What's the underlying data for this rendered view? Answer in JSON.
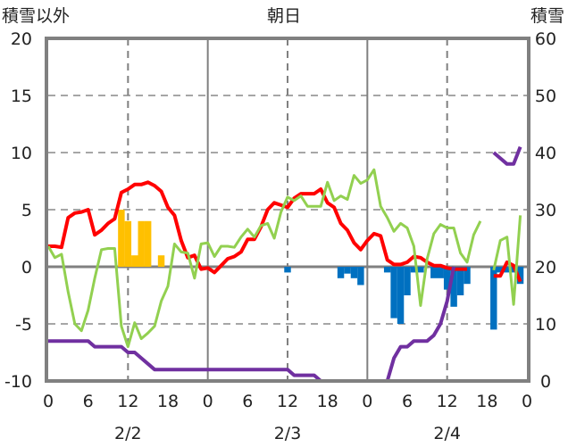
{
  "chart_data": {
    "type": "line",
    "title": "朝日",
    "ylabel_left": "積雪以外",
    "ylabel_right": "積雪",
    "ylim_left": [
      -10,
      20
    ],
    "ylim_right": [
      0,
      60
    ],
    "yticks_left": [
      "20",
      "15",
      "10",
      "5",
      "0",
      "-5",
      "-10"
    ],
    "yticks_right": [
      "60",
      "50",
      "40",
      "30",
      "20",
      "10",
      "0"
    ],
    "xlim_hours": [
      0,
      72
    ],
    "xticks": [
      "0",
      "6",
      "12",
      "18",
      "0",
      "6",
      "12",
      "18",
      "0",
      "6",
      "12",
      "18",
      "0"
    ],
    "date_labels": [
      "2/2",
      "2/3",
      "2/4"
    ],
    "grid": true,
    "colors": {
      "red": "#ff0000",
      "green": "#92d050",
      "purple": "#7030a0",
      "orange": "#ffc000",
      "blue": "#0070c0",
      "axis": "#808080"
    },
    "series": [
      {
        "name": "red-line",
        "axis": "left",
        "color": "#ff0000",
        "values": [
          1.8,
          1.8,
          1.7,
          4.3,
          4.7,
          4.8,
          5.0,
          2.8,
          3.2,
          3.8,
          4.2,
          6.5,
          6.8,
          7.2,
          7.2,
          7.4,
          7.1,
          6.6,
          5.2,
          4.5,
          2.3,
          0.8,
          1.0,
          -0.2,
          -0.1,
          -0.5,
          0.1,
          0.7,
          0.9,
          1.3,
          2.4,
          2.4,
          3.5,
          5.0,
          5.6,
          5.4,
          5.2,
          6.0,
          6.4,
          6.4,
          6.4,
          6.8,
          5.6,
          5.2,
          3.8,
          3.2,
          2.1,
          1.5,
          2.3,
          2.9,
          2.7,
          0.6,
          0.2,
          0.2,
          0.4,
          0.9,
          0.8,
          0.4,
          0.1,
          0.1,
          -0.1,
          -0.2,
          -0.2,
          -0.2,
          null,
          null,
          null,
          -0.8,
          -0.8,
          0.4,
          0.1,
          -1.3
        ]
      },
      {
        "name": "green-line",
        "axis": "left",
        "color": "#92d050",
        "values": [
          1.8,
          0.8,
          1.1,
          -2.2,
          -5.0,
          -5.6,
          -3.8,
          -1.0,
          1.5,
          1.6,
          1.6,
          -5.2,
          -7.0,
          -4.9,
          -6.3,
          -5.8,
          -5.2,
          -3.0,
          -1.7,
          2.0,
          1.3,
          1.2,
          -1.0,
          2.0,
          2.1,
          0.9,
          1.8,
          1.8,
          1.7,
          2.6,
          3.3,
          2.6,
          3.6,
          3.8,
          2.5,
          4.8,
          6.1,
          5.8,
          6.2,
          5.3,
          5.3,
          5.3,
          7.4,
          5.8,
          6.2,
          5.9,
          8.0,
          7.3,
          7.6,
          8.5,
          5.3,
          4.3,
          3.1,
          3.8,
          3.4,
          1.8,
          -3.4,
          0.7,
          2.9,
          3.7,
          3.4,
          3.4,
          1.2,
          0.4,
          2.8,
          4.0,
          null,
          -0.3,
          2.3,
          2.6,
          -3.3,
          4.5
        ]
      },
      {
        "name": "snow-depth",
        "axis": "right",
        "color": "#7030a0",
        "values": [
          7,
          7,
          7,
          7,
          7,
          7,
          7,
          6,
          6,
          6,
          6,
          6,
          5,
          5,
          4,
          3,
          2,
          2,
          2,
          2,
          2,
          2,
          2,
          2,
          2,
          2,
          2,
          2,
          2,
          2,
          2,
          2,
          2,
          2,
          2,
          2,
          2,
          1,
          1,
          1,
          1,
          0,
          0,
          0,
          0,
          0,
          0,
          0,
          0,
          0,
          0,
          0,
          4,
          6,
          6,
          7,
          7,
          7,
          8,
          10,
          14,
          20,
          null,
          null,
          null,
          null,
          null,
          40,
          39,
          38,
          38,
          41
        ]
      }
    ],
    "bars": [
      {
        "name": "positive-bars",
        "axis": "left",
        "color": "#ffc000",
        "values": {
          "11": 5,
          "12": 4,
          "13": 1,
          "14": 4,
          "15": 4,
          "17": 1
        }
      },
      {
        "name": "negative-bars",
        "axis": "left",
        "color": "#0070c0",
        "values": {
          "36": -0.5,
          "44": -1,
          "45": -0.6,
          "46": -1,
          "47": -1.6,
          "51": -0.5,
          "52": -4.5,
          "53": -5,
          "54": -2.5,
          "55": -0.5,
          "56": -0.5,
          "58": -1,
          "59": -1,
          "60": -2,
          "61": -3.5,
          "62": -2.5,
          "63": -1.5,
          "67": -5.5,
          "68": -0.5,
          "69": -0.5,
          "70": -0.5,
          "71": -1.5
        }
      }
    ]
  }
}
